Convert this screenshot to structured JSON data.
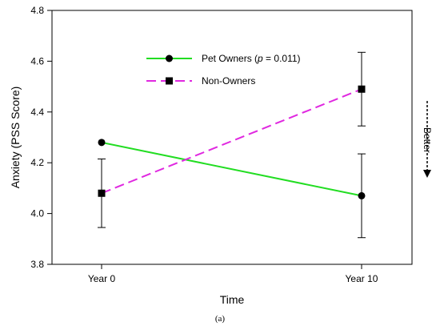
{
  "chart_data": {
    "type": "line",
    "categories": [
      "Year 0",
      "Year 10"
    ],
    "xlabel": "Time",
    "ylabel": "Anxiety (PSS Score)",
    "ylim": [
      3.8,
      4.8
    ],
    "yticks": [
      "3.8",
      "4.0",
      "4.2",
      "4.4",
      "4.6",
      "4.8"
    ],
    "legend_position": "top-center",
    "grid": false,
    "series": [
      {
        "name_prefix": "Pet Owners (",
        "name_italic": "p",
        "name_suffix": " = 0.011)",
        "values": [
          4.28,
          4.07
        ],
        "error_low": [
          null,
          3.905
        ],
        "error_high": [
          null,
          4.235
        ],
        "color": "#22dd22",
        "line_style": "solid",
        "marker": "circle"
      },
      {
        "name": "Non-Owners",
        "values": [
          4.08,
          4.49
        ],
        "error_low": [
          3.945,
          4.345
        ],
        "error_high": [
          4.215,
          4.635
        ],
        "color": "#e028e0",
        "line_style": "dashed",
        "marker": "square"
      }
    ]
  },
  "annotation": {
    "better": "Better"
  },
  "caption": "(a)"
}
